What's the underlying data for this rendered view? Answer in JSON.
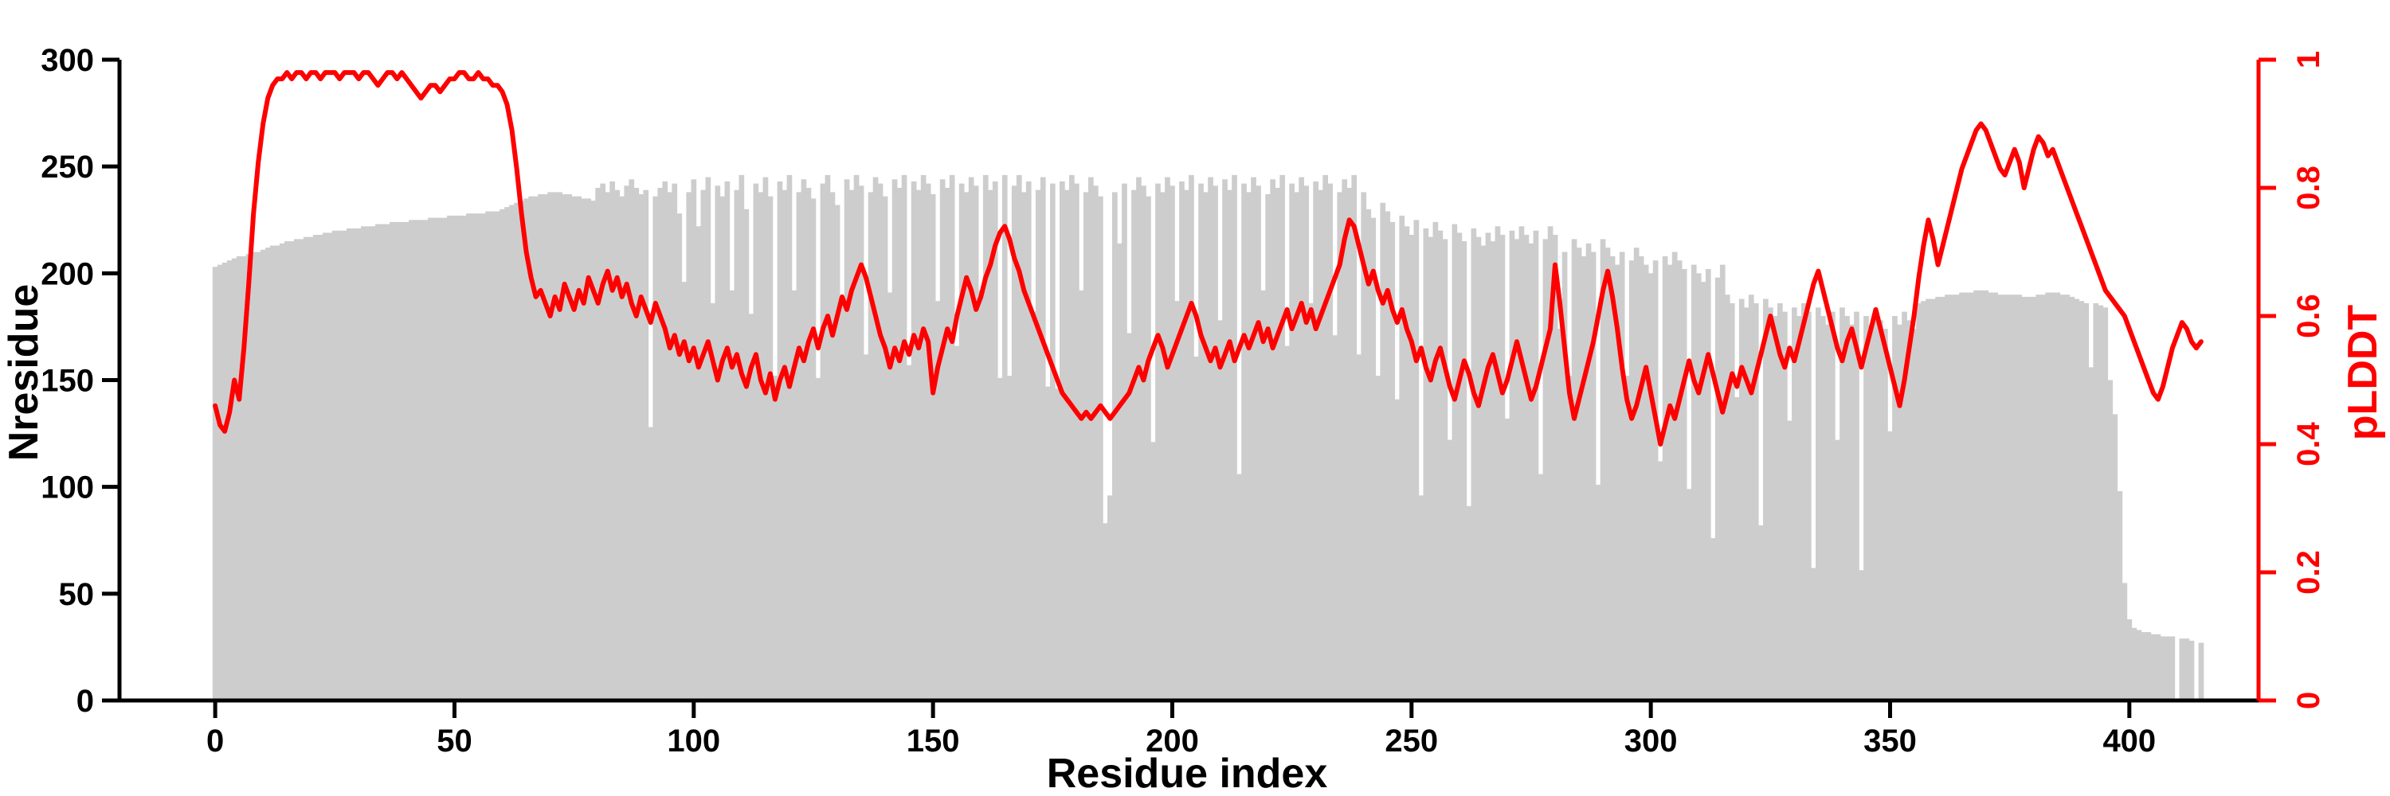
{
  "chart_data": {
    "type": "bar+line",
    "title": "",
    "xlabel": "Residue index",
    "ylabel_left": "Nresidue",
    "ylabel_right": "pLDDT",
    "x_start": 0,
    "x_step": 1,
    "x_ticks": [
      0,
      50,
      100,
      150,
      200,
      250,
      300,
      350,
      400
    ],
    "y_left_ticks": [
      0,
      50,
      100,
      150,
      200,
      250,
      300
    ],
    "y_right_ticks": [
      0,
      0.2,
      0.4,
      0.6,
      0.8,
      1
    ],
    "y_left_range": [
      0,
      300
    ],
    "y_right_range": [
      0,
      1
    ],
    "grid": false,
    "legend": "none",
    "colors": {
      "bars": "#cdcdcd",
      "line": "#ff0000",
      "axis_left": "#000000",
      "axis_right": "#ff0000"
    },
    "series": [
      {
        "name": "Nresidue",
        "type": "bar",
        "axis": "left",
        "color": "#cdcdcd",
        "values": [
          203,
          204,
          205,
          206,
          207,
          208,
          208,
          209,
          210,
          210,
          211,
          212,
          213,
          213,
          214,
          215,
          215,
          216,
          216,
          217,
          217,
          218,
          218,
          219,
          219,
          220,
          220,
          220,
          221,
          221,
          221,
          222,
          222,
          222,
          223,
          223,
          223,
          224,
          224,
          224,
          224,
          225,
          225,
          225,
          225,
          226,
          226,
          226,
          226,
          227,
          227,
          227,
          227,
          228,
          228,
          228,
          228,
          229,
          229,
          229,
          230,
          231,
          232,
          233,
          234,
          235,
          236,
          236,
          237,
          237,
          238,
          238,
          238,
          237,
          237,
          236,
          236,
          235,
          235,
          234,
          240,
          242,
          238,
          243,
          239,
          236,
          241,
          244,
          240,
          237,
          239,
          128,
          236,
          240,
          243,
          238,
          242,
          228,
          196,
          238,
          244,
          222,
          239,
          245,
          186,
          241,
          236,
          243,
          192,
          239,
          246,
          230,
          181,
          242,
          238,
          245,
          236,
          152,
          243,
          239,
          246,
          192,
          238,
          244,
          240,
          235,
          151,
          242,
          246,
          238,
          232,
          186,
          244,
          239,
          246,
          241,
          162,
          238,
          245,
          242,
          236,
          191,
          244,
          240,
          246,
          157,
          243,
          239,
          246,
          242,
          237,
          187,
          244,
          240,
          246,
          166,
          242,
          238,
          245,
          241,
          192,
          246,
          239,
          243,
          151,
          246,
          152,
          241,
          246,
          238,
          243,
          182,
          239,
          245,
          147,
          242,
          146,
          243,
          239,
          246,
          242,
          192,
          238,
          245,
          241,
          236,
          83,
          96,
          238,
          214,
          242,
          172,
          239,
          245,
          241,
          236,
          121,
          242,
          238,
          245,
          241,
          187,
          243,
          239,
          246,
          161,
          242,
          238,
          245,
          241,
          178,
          244,
          239,
          246,
          106,
          242,
          238,
          245,
          241,
          192,
          237,
          244,
          240,
          246,
          166,
          242,
          238,
          245,
          241,
          186,
          243,
          239,
          246,
          242,
          171,
          238,
          244,
          240,
          246,
          162,
          238,
          230,
          226,
          152,
          233,
          229,
          224,
          141,
          227,
          222,
          218,
          225,
          96,
          221,
          217,
          224,
          220,
          216,
          122,
          223,
          219,
          215,
          91,
          221,
          217,
          213,
          219,
          215,
          222,
          218,
          132,
          220,
          216,
          222,
          218,
          214,
          220,
          106,
          216,
          222,
          218,
          174,
          210,
          152,
          216,
          212,
          208,
          214,
          210,
          101,
          216,
          212,
          208,
          204,
          210,
          152,
          206,
          212,
          208,
          204,
          200,
          206,
          112,
          208,
          204,
          210,
          206,
          202,
          99,
          204,
          200,
          196,
          202,
          76,
          198,
          204,
          190,
          186,
          142,
          188,
          184,
          190,
          186,
          82,
          188,
          184,
          180,
          186,
          182,
          131,
          184,
          180,
          186,
          182,
          62,
          184,
          180,
          176,
          182,
          122,
          184,
          180,
          176,
          182,
          61,
          180,
          176,
          182,
          178,
          174,
          126,
          180,
          176,
          182,
          178,
          174,
          186,
          187,
          188,
          188,
          189,
          189,
          190,
          190,
          190,
          191,
          191,
          191,
          192,
          192,
          192,
          191,
          191,
          190,
          190,
          190,
          190,
          190,
          189,
          189,
          189,
          190,
          190,
          191,
          191,
          191,
          190,
          190,
          189,
          188,
          187,
          186,
          156,
          186,
          185,
          184,
          150,
          134,
          98,
          55,
          38,
          34,
          33,
          32,
          32,
          31,
          31,
          30,
          30,
          30,
          0,
          29,
          29,
          28,
          0,
          27
        ]
      },
      {
        "name": "pLDDT",
        "type": "line",
        "axis": "right",
        "color": "#ff0000",
        "values": [
          0.46,
          0.43,
          0.42,
          0.45,
          0.5,
          0.47,
          0.55,
          0.65,
          0.76,
          0.84,
          0.9,
          0.94,
          0.96,
          0.97,
          0.97,
          0.98,
          0.97,
          0.98,
          0.98,
          0.97,
          0.98,
          0.98,
          0.97,
          0.98,
          0.98,
          0.98,
          0.97,
          0.98,
          0.98,
          0.98,
          0.97,
          0.98,
          0.98,
          0.97,
          0.96,
          0.97,
          0.98,
          0.98,
          0.97,
          0.98,
          0.97,
          0.96,
          0.95,
          0.94,
          0.95,
          0.96,
          0.96,
          0.95,
          0.96,
          0.97,
          0.97,
          0.98,
          0.98,
          0.97,
          0.97,
          0.98,
          0.97,
          0.97,
          0.96,
          0.96,
          0.95,
          0.93,
          0.89,
          0.83,
          0.76,
          0.7,
          0.66,
          0.63,
          0.64,
          0.62,
          0.6,
          0.63,
          0.61,
          0.65,
          0.63,
          0.61,
          0.64,
          0.62,
          0.66,
          0.64,
          0.62,
          0.65,
          0.67,
          0.64,
          0.66,
          0.63,
          0.65,
          0.62,
          0.6,
          0.63,
          0.61,
          0.59,
          0.62,
          0.6,
          0.58,
          0.55,
          0.57,
          0.54,
          0.56,
          0.53,
          0.55,
          0.52,
          0.54,
          0.56,
          0.53,
          0.5,
          0.53,
          0.55,
          0.52,
          0.54,
          0.51,
          0.49,
          0.52,
          0.54,
          0.5,
          0.48,
          0.51,
          0.47,
          0.5,
          0.52,
          0.49,
          0.52,
          0.55,
          0.53,
          0.56,
          0.58,
          0.55,
          0.58,
          0.6,
          0.57,
          0.6,
          0.63,
          0.61,
          0.64,
          0.66,
          0.68,
          0.66,
          0.63,
          0.6,
          0.57,
          0.55,
          0.52,
          0.55,
          0.53,
          0.56,
          0.54,
          0.57,
          0.55,
          0.58,
          0.56,
          0.48,
          0.52,
          0.55,
          0.58,
          0.56,
          0.6,
          0.63,
          0.66,
          0.64,
          0.61,
          0.63,
          0.66,
          0.68,
          0.71,
          0.73,
          0.74,
          0.72,
          0.69,
          0.67,
          0.64,
          0.62,
          0.6,
          0.58,
          0.56,
          0.54,
          0.52,
          0.5,
          0.48,
          0.47,
          0.46,
          0.45,
          0.44,
          0.45,
          0.44,
          0.45,
          0.46,
          0.45,
          0.44,
          0.45,
          0.46,
          0.47,
          0.48,
          0.5,
          0.52,
          0.5,
          0.53,
          0.55,
          0.57,
          0.55,
          0.52,
          0.54,
          0.56,
          0.58,
          0.6,
          0.62,
          0.6,
          0.57,
          0.55,
          0.53,
          0.55,
          0.52,
          0.54,
          0.56,
          0.53,
          0.55,
          0.57,
          0.55,
          0.57,
          0.59,
          0.56,
          0.58,
          0.55,
          0.57,
          0.59,
          0.61,
          0.58,
          0.6,
          0.62,
          0.59,
          0.61,
          0.58,
          0.6,
          0.62,
          0.64,
          0.66,
          0.68,
          0.72,
          0.75,
          0.74,
          0.71,
          0.68,
          0.65,
          0.67,
          0.64,
          0.62,
          0.64,
          0.61,
          0.59,
          0.61,
          0.58,
          0.56,
          0.53,
          0.55,
          0.52,
          0.5,
          0.53,
          0.55,
          0.52,
          0.49,
          0.47,
          0.5,
          0.53,
          0.51,
          0.48,
          0.46,
          0.49,
          0.52,
          0.54,
          0.51,
          0.48,
          0.5,
          0.53,
          0.56,
          0.53,
          0.5,
          0.47,
          0.49,
          0.52,
          0.55,
          0.58,
          0.68,
          0.62,
          0.55,
          0.48,
          0.44,
          0.47,
          0.5,
          0.53,
          0.56,
          0.6,
          0.64,
          0.67,
          0.63,
          0.58,
          0.52,
          0.47,
          0.44,
          0.46,
          0.49,
          0.52,
          0.48,
          0.44,
          0.4,
          0.43,
          0.46,
          0.44,
          0.47,
          0.5,
          0.53,
          0.5,
          0.48,
          0.51,
          0.54,
          0.51,
          0.48,
          0.45,
          0.48,
          0.51,
          0.49,
          0.52,
          0.5,
          0.48,
          0.51,
          0.54,
          0.57,
          0.6,
          0.57,
          0.54,
          0.52,
          0.55,
          0.53,
          0.56,
          0.59,
          0.62,
          0.65,
          0.67,
          0.64,
          0.61,
          0.58,
          0.55,
          0.53,
          0.56,
          0.58,
          0.55,
          0.52,
          0.55,
          0.58,
          0.61,
          0.58,
          0.55,
          0.52,
          0.49,
          0.46,
          0.5,
          0.55,
          0.6,
          0.66,
          0.71,
          0.75,
          0.72,
          0.68,
          0.71,
          0.74,
          0.77,
          0.8,
          0.83,
          0.85,
          0.87,
          0.89,
          0.9,
          0.89,
          0.87,
          0.85,
          0.83,
          0.82,
          0.84,
          0.86,
          0.84,
          0.8,
          0.83,
          0.86,
          0.88,
          0.87,
          0.85,
          0.86,
          0.84,
          0.82,
          0.8,
          0.78,
          0.76,
          0.74,
          0.72,
          0.7,
          0.68,
          0.66,
          0.64,
          0.63,
          0.62,
          0.61,
          0.6,
          0.58,
          0.56,
          0.54,
          0.52,
          0.5,
          0.48,
          0.47,
          0.49,
          0.52,
          0.55,
          0.57,
          0.59,
          0.58,
          0.56,
          0.55,
          0.56
        ]
      }
    ]
  }
}
